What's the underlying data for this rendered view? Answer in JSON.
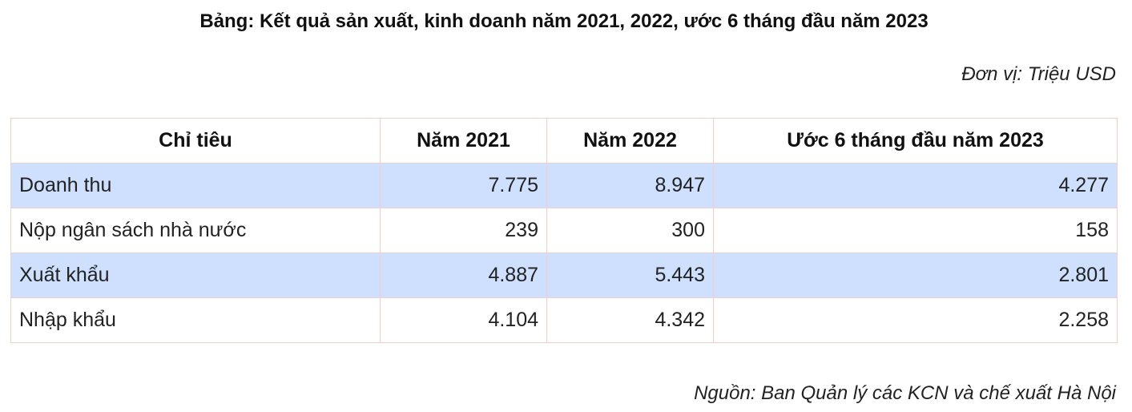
{
  "title": "Bảng: Kết quả sản xuất, kinh doanh năm 2021, 2022, ước 6 tháng đầu năm 2023",
  "unit": "Đơn vị: Triệu USD",
  "table": {
    "headers": [
      "Chỉ tiêu",
      "Năm 2021",
      "Năm 2022",
      "Ước 6 tháng đầu năm 2023"
    ],
    "rows": [
      {
        "label": "Doanh thu",
        "values": [
          "7.775",
          "8.947",
          "4.277"
        ]
      },
      {
        "label": "Nộp ngân sách nhà nước",
        "values": [
          "239",
          "300",
          "158"
        ]
      },
      {
        "label": "Xuất khẩu",
        "values": [
          "4.887",
          "5.443",
          "2.801"
        ]
      },
      {
        "label": "Nhập khẩu",
        "values": [
          "4.104",
          "4.342",
          "2.258"
        ]
      }
    ]
  },
  "source": "Nguồn: Ban Quản lý các KCN và chế xuất Hà Nội",
  "colors": {
    "row_highlight": "#cfe0ff",
    "border": "#f0cfc8"
  }
}
